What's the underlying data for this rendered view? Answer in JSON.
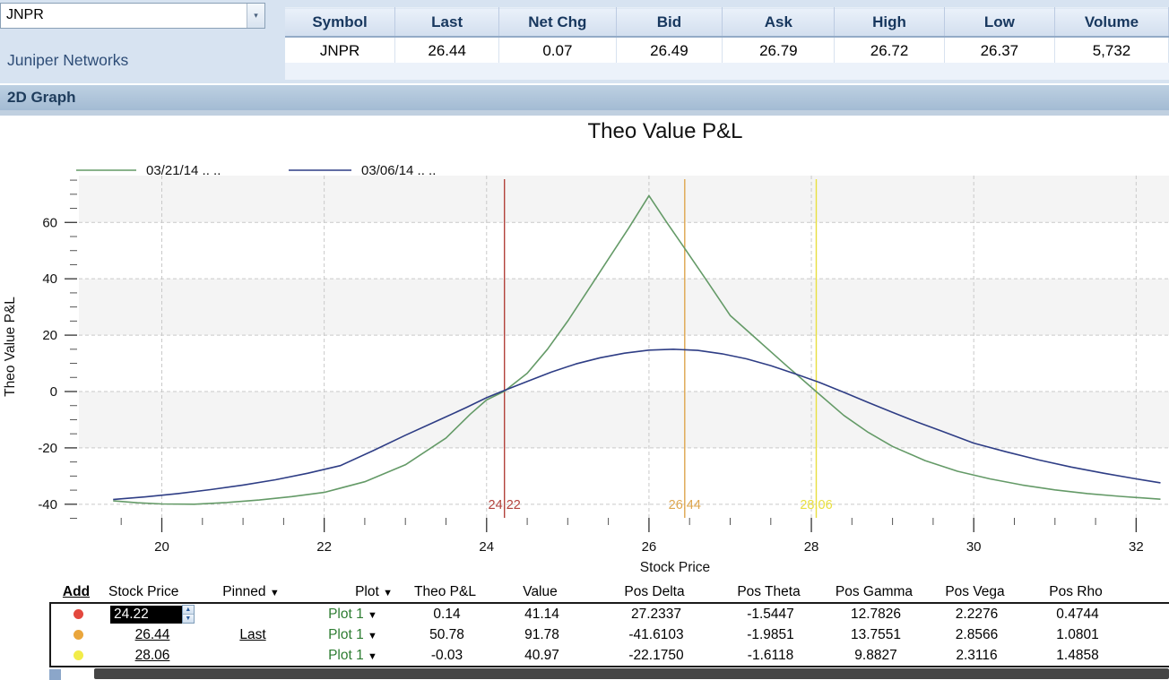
{
  "quote": {
    "symbol_input": "JNPR",
    "company_name": "Juniper Networks",
    "columns": [
      "Symbol",
      "Last",
      "Net Chg",
      "Bid",
      "Ask",
      "High",
      "Low",
      "Volume"
    ],
    "values": {
      "symbol": "JNPR",
      "last": "26.44",
      "net_chg": "0.07",
      "bid": "26.49",
      "ask": "26.79",
      "high": "26.72",
      "low": "26.37",
      "volume": "5,732"
    }
  },
  "section_header": "2D Graph",
  "chart_data": {
    "type": "line",
    "title": "Theo Value P&L",
    "xlabel": "Stock Price",
    "ylabel": "Theo Value P&L",
    "xlim": [
      19.0,
      32.35
    ],
    "ylim": [
      -45,
      76
    ],
    "x_ticks": [
      20,
      22,
      24,
      26,
      28,
      30,
      32
    ],
    "x_minor_step": 0.5,
    "y_ticks": [
      60,
      40,
      20,
      0,
      -20,
      -40
    ],
    "y_minor_step": 5,
    "grid": "dashed",
    "legend_position": "top-left",
    "legend": [
      {
        "label": "03/21/14 .. ..",
        "color": "#649a67"
      },
      {
        "label": "03/06/14 .. ..",
        "color": "#2e3d85"
      }
    ],
    "series": [
      {
        "name": "03/21/14 .. ..",
        "color": "#649a67",
        "points": [
          [
            19.4,
            -38.8
          ],
          [
            19.7,
            -39.5
          ],
          [
            20,
            -39.9
          ],
          [
            20.4,
            -40
          ],
          [
            20.8,
            -39.4
          ],
          [
            21.2,
            -38.5
          ],
          [
            21.6,
            -37.3
          ],
          [
            22,
            -35.8
          ],
          [
            22.5,
            -32
          ],
          [
            23,
            -26
          ],
          [
            23.5,
            -16.5
          ],
          [
            23.8,
            -8
          ],
          [
            24,
            -3
          ],
          [
            24.22,
            0.14
          ],
          [
            24.5,
            6.5
          ],
          [
            24.75,
            15
          ],
          [
            25,
            25
          ],
          [
            25.25,
            36
          ],
          [
            25.5,
            47
          ],
          [
            25.75,
            58
          ],
          [
            26,
            69.5
          ],
          [
            26.22,
            60
          ],
          [
            26.44,
            50.78
          ],
          [
            26.72,
            39
          ],
          [
            27,
            27
          ],
          [
            27.35,
            18
          ],
          [
            27.7,
            9
          ],
          [
            28.06,
            -0.03
          ],
          [
            28.4,
            -8.5
          ],
          [
            28.7,
            -14.5
          ],
          [
            29,
            -19.5
          ],
          [
            29.4,
            -24.5
          ],
          [
            29.8,
            -28.3
          ],
          [
            30.2,
            -31
          ],
          [
            30.6,
            -33.2
          ],
          [
            31,
            -34.9
          ],
          [
            31.4,
            -36.2
          ],
          [
            31.8,
            -37.2
          ],
          [
            32.3,
            -38.2
          ]
        ]
      },
      {
        "name": "03/06/14 .. ..",
        "color": "#2e3d85",
        "points": [
          [
            19.4,
            -38.3
          ],
          [
            19.8,
            -37.4
          ],
          [
            20.2,
            -36.2
          ],
          [
            20.6,
            -34.8
          ],
          [
            21,
            -33.2
          ],
          [
            21.4,
            -31.3
          ],
          [
            21.8,
            -29
          ],
          [
            22.2,
            -26.3
          ],
          [
            22.6,
            -21
          ],
          [
            23,
            -15.5
          ],
          [
            23.4,
            -10.3
          ],
          [
            23.75,
            -5.7
          ],
          [
            24,
            -2.2
          ],
          [
            24.22,
            0.4
          ],
          [
            24.5,
            3.6
          ],
          [
            24.8,
            6.9
          ],
          [
            25.1,
            9.8
          ],
          [
            25.4,
            12
          ],
          [
            25.7,
            13.6
          ],
          [
            26,
            14.7
          ],
          [
            26.3,
            15
          ],
          [
            26.6,
            14.6
          ],
          [
            26.9,
            13.4
          ],
          [
            27.2,
            11.6
          ],
          [
            27.5,
            9.2
          ],
          [
            27.8,
            6.3
          ],
          [
            28.1,
            3.2
          ],
          [
            28.4,
            -0.3
          ],
          [
            28.7,
            -3.9
          ],
          [
            29,
            -7.4
          ],
          [
            29.3,
            -10.8
          ],
          [
            29.6,
            -14
          ],
          [
            30,
            -18.3
          ],
          [
            30.4,
            -21.4
          ],
          [
            30.8,
            -24.3
          ],
          [
            31.2,
            -26.8
          ],
          [
            31.6,
            -29
          ],
          [
            32,
            -31
          ],
          [
            32.3,
            -32.4
          ]
        ]
      }
    ],
    "markers": [
      {
        "x": 24.22,
        "label": "24.22",
        "color": "#b2423c"
      },
      {
        "x": 26.44,
        "label": "26.44",
        "color": "#dea64e"
      },
      {
        "x": 28.06,
        "label": "28.06",
        "color": "#e8df3e"
      }
    ]
  },
  "positions_table": {
    "headers": {
      "add": "Add",
      "stock_price": "Stock Price",
      "pinned": "Pinned",
      "plot": "Plot",
      "theo_pl": "Theo P&L",
      "value": "Value",
      "pos_delta": "Pos Delta",
      "pos_theta": "Pos Theta",
      "pos_gamma": "Pos Gamma",
      "pos_vega": "Pos Vega",
      "pos_rho": "Pos Rho"
    },
    "rows": [
      {
        "dot_color": "#e3483e",
        "stock_price": "24.22",
        "pinned": "",
        "plot": "Plot 1",
        "theo_pl": "0.14",
        "value": "41.14",
        "pos_delta": "27.2337",
        "pos_theta": "-1.5447",
        "pos_gamma": "12.7826",
        "pos_vega": "2.2276",
        "pos_rho": "0.4744"
      },
      {
        "dot_color": "#eaa63c",
        "stock_price": "26.44",
        "pinned": "Last",
        "plot": "Plot 1",
        "theo_pl": "50.78",
        "value": "91.78",
        "pos_delta": "-41.6103",
        "pos_theta": "-1.9851",
        "pos_gamma": "13.7551",
        "pos_vega": "2.8566",
        "pos_rho": "1.0801"
      },
      {
        "dot_color": "#f2ec49",
        "stock_price": "28.06",
        "pinned": "",
        "plot": "Plot 1",
        "theo_pl": "-0.03",
        "value": "40.97",
        "pos_delta": "-22.1750",
        "pos_theta": "-1.6118",
        "pos_gamma": "9.8827",
        "pos_vega": "2.3116",
        "pos_rho": "1.4858"
      }
    ]
  }
}
